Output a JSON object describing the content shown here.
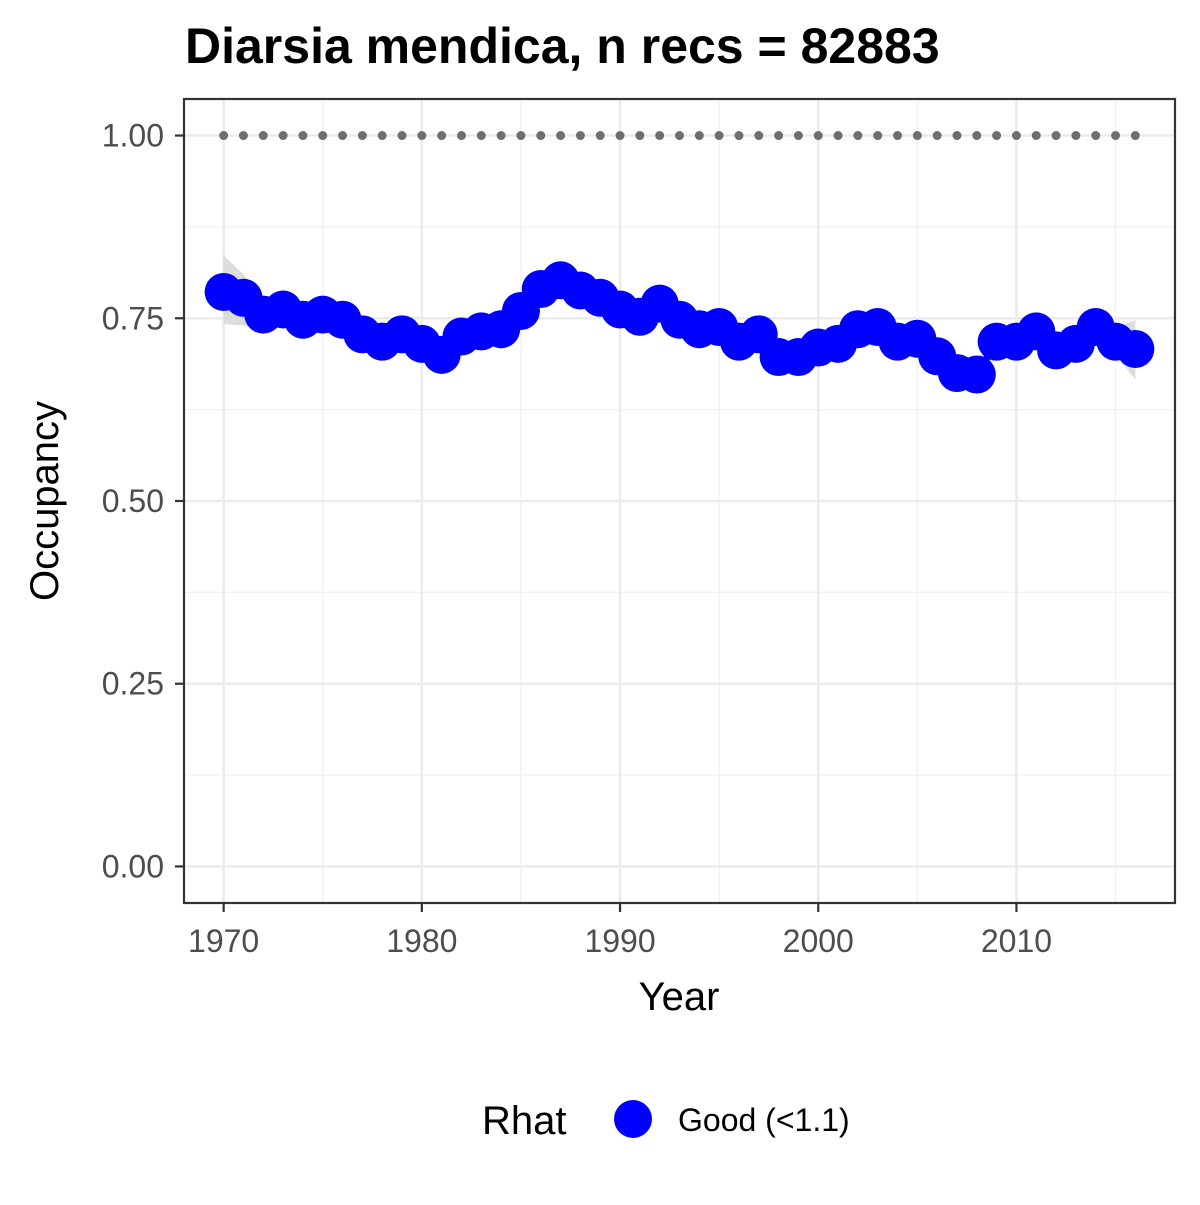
{
  "chart_data": {
    "type": "line",
    "title": "Diarsia mendica, n recs = 82883",
    "xlabel": "Year",
    "ylabel": "Occupancy",
    "xlim": [
      1968,
      2018
    ],
    "ylim": [
      -0.05,
      1.05
    ],
    "x_ticks": [
      1970,
      1980,
      1990,
      2000,
      2010
    ],
    "x_tick_labels": [
      "1970",
      "1980",
      "1990",
      "2000",
      "2010"
    ],
    "y_ticks": [
      0,
      0.25,
      0.5,
      0.75,
      1.0
    ],
    "y_tick_labels": [
      "0.00",
      "0.25",
      "0.50",
      "0.75",
      "1.00"
    ],
    "x_minor_ticks": [
      1975,
      1985,
      1995,
      2005,
      2015
    ],
    "y_minor_ticks": [
      0.125,
      0.375,
      0.625,
      0.875
    ],
    "grid": true,
    "legend": {
      "title": "Rhat",
      "position": "bottom",
      "entries": [
        {
          "label": "Good (<1.1)",
          "color": "#0000ff"
        }
      ]
    },
    "x": [
      1970,
      1971,
      1972,
      1973,
      1974,
      1975,
      1976,
      1977,
      1978,
      1979,
      1980,
      1981,
      1982,
      1983,
      1984,
      1985,
      1986,
      1987,
      1988,
      1989,
      1990,
      1991,
      1992,
      1993,
      1994,
      1995,
      1996,
      1997,
      1998,
      1999,
      2000,
      2001,
      2002,
      2003,
      2004,
      2005,
      2006,
      2007,
      2008,
      2009,
      2010,
      2011,
      2012,
      2013,
      2014,
      2015,
      2016
    ],
    "series": [
      {
        "role": "estimate",
        "color": "#0000ff",
        "values": [
          0.786,
          0.778,
          0.755,
          0.762,
          0.748,
          0.755,
          0.748,
          0.728,
          0.718,
          0.728,
          0.715,
          0.7,
          0.725,
          0.732,
          0.735,
          0.76,
          0.79,
          0.802,
          0.788,
          0.778,
          0.762,
          0.752,
          0.77,
          0.748,
          0.735,
          0.738,
          0.718,
          0.728,
          0.697,
          0.697,
          0.71,
          0.715,
          0.735,
          0.738,
          0.718,
          0.722,
          0.698,
          0.675,
          0.673,
          0.718,
          0.718,
          0.732,
          0.706,
          0.715,
          0.738,
          0.718,
          0.708
        ]
      },
      {
        "role": "upper",
        "color": "#d9d9d9",
        "values": [
          0.836,
          0.81,
          0.78,
          0.78,
          0.765,
          0.772,
          0.765,
          0.745,
          0.738,
          0.745,
          0.735,
          0.722,
          0.745,
          0.75,
          0.752,
          0.776,
          0.806,
          0.818,
          0.804,
          0.794,
          0.778,
          0.768,
          0.786,
          0.766,
          0.752,
          0.754,
          0.736,
          0.746,
          0.716,
          0.716,
          0.728,
          0.732,
          0.752,
          0.756,
          0.736,
          0.74,
          0.716,
          0.694,
          0.692,
          0.736,
          0.736,
          0.75,
          0.724,
          0.734,
          0.756,
          0.736,
          0.748
        ]
      },
      {
        "role": "lower",
        "color": "#d9d9d9",
        "values": [
          0.742,
          0.74,
          0.732,
          0.74,
          0.732,
          0.738,
          0.732,
          0.712,
          0.7,
          0.71,
          0.698,
          0.672,
          0.705,
          0.712,
          0.716,
          0.744,
          0.772,
          0.784,
          0.772,
          0.762,
          0.746,
          0.736,
          0.752,
          0.73,
          0.718,
          0.72,
          0.7,
          0.71,
          0.678,
          0.678,
          0.692,
          0.698,
          0.718,
          0.72,
          0.7,
          0.704,
          0.68,
          0.656,
          0.654,
          0.7,
          0.7,
          0.714,
          0.688,
          0.696,
          0.72,
          0.7,
          0.666
        ]
      },
      {
        "role": "reference",
        "color": "#6e6e6e",
        "values": [
          1,
          1,
          1,
          1,
          1,
          1,
          1,
          1,
          1,
          1,
          1,
          1,
          1,
          1,
          1,
          1,
          1,
          1,
          1,
          1,
          1,
          1,
          1,
          1,
          1,
          1,
          1,
          1,
          1,
          1,
          1,
          1,
          1,
          1,
          1,
          1,
          1,
          1,
          1,
          1,
          1,
          1,
          1,
          1,
          1,
          1,
          1
        ]
      }
    ]
  }
}
